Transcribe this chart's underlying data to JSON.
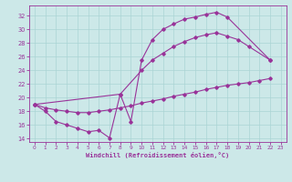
{
  "xlabel": "Windchill (Refroidissement éolien,°C)",
  "background_color": "#cce8e8",
  "line_color": "#993399",
  "xlim": [
    -0.5,
    23.5
  ],
  "ylim": [
    13.5,
    33.5
  ],
  "yticks": [
    14,
    16,
    18,
    20,
    22,
    24,
    26,
    28,
    30,
    32
  ],
  "xticks": [
    0,
    1,
    2,
    3,
    4,
    5,
    6,
    7,
    8,
    9,
    10,
    11,
    12,
    13,
    14,
    15,
    16,
    17,
    18,
    19,
    20,
    21,
    22,
    23
  ],
  "grid_color": "#aad4d4",
  "curve1_x": [
    0,
    1,
    2,
    3,
    4,
    5,
    6,
    7,
    8,
    9,
    10,
    11,
    12,
    13,
    14,
    15,
    16,
    17,
    18,
    22
  ],
  "curve1_y": [
    19.0,
    18.0,
    16.5,
    16.0,
    15.5,
    15.0,
    15.2,
    14.1,
    20.5,
    16.5,
    25.5,
    28.5,
    30.0,
    30.8,
    31.5,
    31.8,
    32.2,
    32.5,
    31.8,
    25.5
  ],
  "curve2_x": [
    0,
    8,
    10,
    11,
    12,
    13,
    14,
    15,
    16,
    17,
    18,
    19,
    20,
    22
  ],
  "curve2_y": [
    19.0,
    20.5,
    24.0,
    25.5,
    26.5,
    27.5,
    28.2,
    28.8,
    29.2,
    29.5,
    29.0,
    28.5,
    27.5,
    25.5
  ],
  "curve3_x": [
    0,
    1,
    2,
    3,
    4,
    5,
    6,
    7,
    8,
    9,
    10,
    11,
    12,
    13,
    14,
    15,
    16,
    17,
    18,
    19,
    20,
    21,
    22
  ],
  "curve3_y": [
    19.0,
    18.5,
    18.2,
    18.0,
    17.8,
    17.8,
    18.0,
    18.2,
    18.5,
    18.8,
    19.2,
    19.5,
    19.8,
    20.2,
    20.5,
    20.8,
    21.2,
    21.5,
    21.8,
    22.0,
    22.2,
    22.5,
    22.8
  ]
}
